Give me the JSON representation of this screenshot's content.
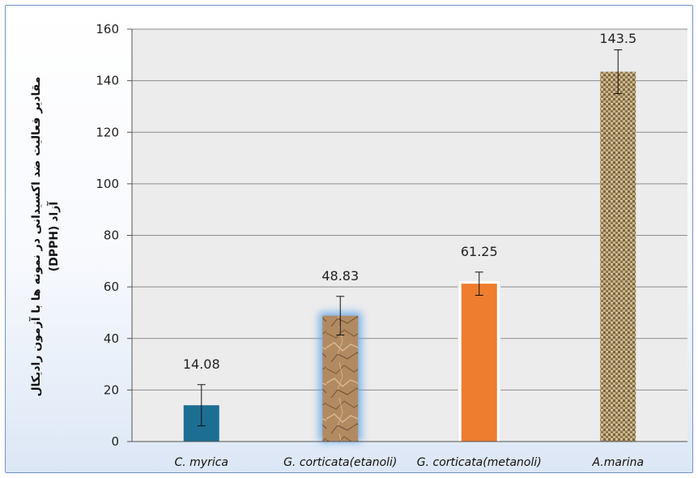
{
  "chart_data": {
    "type": "bar",
    "title": "",
    "xlabel": "",
    "ylabel_lines": [
      "مقادیر فعالیت ضد اکسیدانی در نمونه ها با آزمون  رادیکال",
      "آزاد (DPPH)"
    ],
    "categories": [
      "C. myrica",
      "G. corticata(etanoli)",
      "G. corticata(metanoli)",
      "A.marina"
    ],
    "values": [
      14.08,
      48.83,
      61.25,
      143.5
    ],
    "error": [
      8,
      7.5,
      4.5,
      8.5
    ],
    "data_labels": [
      "14.08",
      "48.83",
      "61.25",
      "143.5"
    ],
    "ylim": [
      0,
      160
    ],
    "yticks": [
      0,
      20,
      40,
      60,
      80,
      100,
      120,
      140,
      160
    ],
    "grid": true,
    "legend": "none",
    "colors": {
      "bar1": "#1d6e93",
      "bar2": "#b28a62",
      "bar3": "#ee7d2e",
      "bar4": "#bda576",
      "grid": "#8c8c8c",
      "plot_bg": "#ececec"
    }
  }
}
